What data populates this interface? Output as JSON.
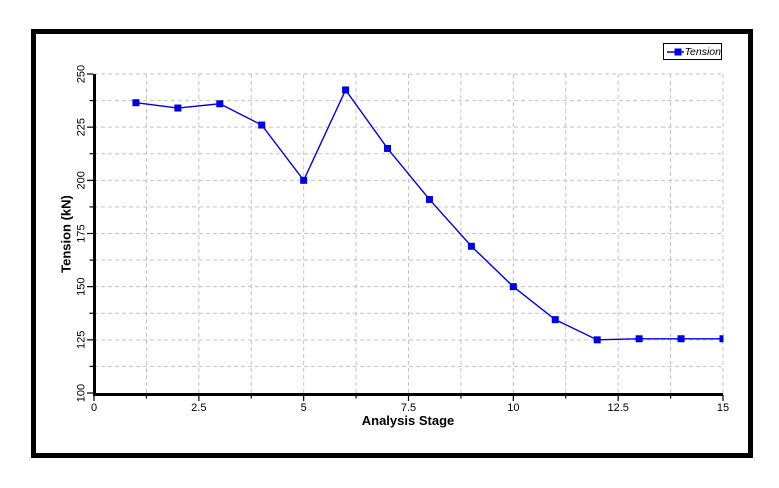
{
  "colors": {
    "accent_blue": "#0000e6",
    "grid_gray": "#c4c4c4",
    "axis_black": "#000000",
    "background": "#ffffff"
  },
  "legend": {
    "label": "Tension",
    "position": "top-right"
  },
  "chart_data": {
    "type": "line",
    "title": "",
    "xlabel": "Analysis Stage",
    "ylabel": "Tension (kN)",
    "xlim": [
      0,
      15
    ],
    "ylim": [
      100,
      250
    ],
    "x_major_ticks": [
      0,
      2.5,
      5,
      7.5,
      10,
      12.5,
      15
    ],
    "x_minor_step": 1.25,
    "y_major_ticks": [
      100,
      125,
      150,
      175,
      200,
      225,
      250
    ],
    "y_minor_step": 12.5,
    "grid": {
      "style": "dashed",
      "on": true
    },
    "legend_position": "top-right",
    "series": [
      {
        "name": "Tension",
        "marker": "square",
        "x": [
          1,
          2,
          3,
          4,
          5,
          6,
          7,
          8,
          9,
          10,
          11,
          12,
          13,
          14,
          15
        ],
        "values": [
          236.5,
          234,
          236,
          226,
          200,
          242.5,
          215,
          191,
          169,
          150,
          134.5,
          125,
          125.5,
          125.5,
          125.5
        ]
      }
    ]
  }
}
